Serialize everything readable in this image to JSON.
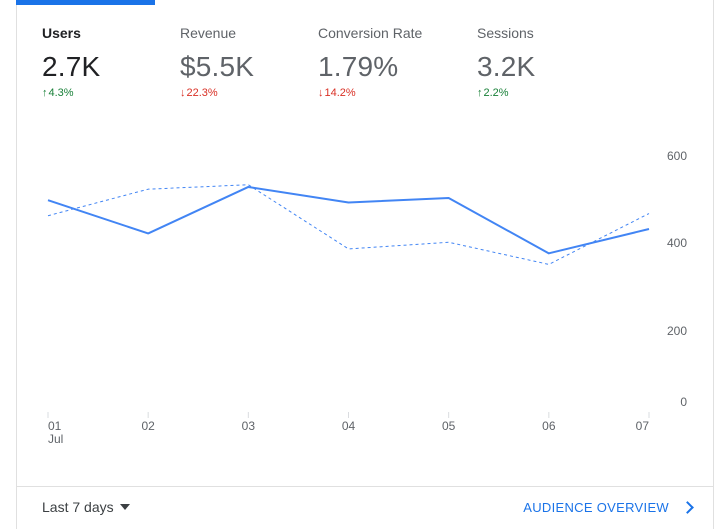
{
  "metrics": [
    {
      "label": "Users",
      "value": "2.7K",
      "delta": "4.3%",
      "direction": "up",
      "active": true
    },
    {
      "label": "Revenue",
      "value": "$5.5K",
      "delta": "22.3%",
      "direction": "down",
      "active": false
    },
    {
      "label": "Conversion Rate",
      "value": "1.79%",
      "delta": "14.2%",
      "direction": "down",
      "active": false
    },
    {
      "label": "Sessions",
      "value": "3.2K",
      "delta": "2.2%",
      "direction": "up",
      "active": false
    }
  ],
  "footer": {
    "range_label": "Last 7 days",
    "overview_label": "AUDIENCE OVERVIEW"
  },
  "colors": {
    "accent": "#1a73e8",
    "line": "#4285f4",
    "up": "#188038",
    "down": "#d93025"
  },
  "chart_data": {
    "type": "line",
    "x": [
      "01",
      "02",
      "03",
      "04",
      "05",
      "06",
      "07"
    ],
    "x_sublabel": "Jul",
    "y_ticks": [
      "0",
      "200",
      "400",
      "600"
    ],
    "ylim": [
      0,
      600
    ],
    "series": [
      {
        "values": [
          465,
          390,
          495,
          460,
          470,
          345,
          400
        ],
        "style": "solid"
      },
      {
        "values": [
          430,
          490,
          500,
          355,
          370,
          320,
          435
        ],
        "style": "dashed"
      }
    ],
    "grid": false
  }
}
